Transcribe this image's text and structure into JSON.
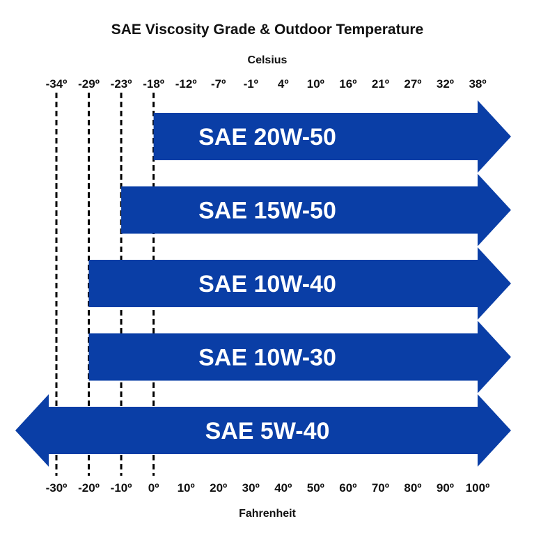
{
  "chart_data": {
    "type": "bar",
    "title": "SAE Viscosity Grade & Outdoor Temperature",
    "top_axis_label": "Celsius",
    "bottom_axis_label": "Fahrenheit",
    "celsius_ticks": [
      "-34º",
      "-29º",
      "-23º",
      "-18º",
      "-12º",
      "-7º",
      "-1º",
      "4º",
      "10º",
      "16º",
      "21º",
      "27º",
      "32º",
      "38º"
    ],
    "fahrenheit_ticks": [
      "-30º",
      "-20º",
      "-10º",
      "0º",
      "10º",
      "20º",
      "30º",
      "40º",
      "50º",
      "60º",
      "70º",
      "80º",
      "90º",
      "100º"
    ],
    "fahrenheit_values": [
      -30,
      -20,
      -10,
      0,
      10,
      20,
      30,
      40,
      50,
      60,
      70,
      80,
      90,
      100
    ],
    "xlim_fahrenheit": [
      -30,
      100
    ],
    "dashed_lines_fahrenheit": [
      -30,
      -20,
      -10,
      0
    ],
    "bar_color": "#0a3ea6",
    "series": [
      {
        "name": "SAE 20W-50",
        "min_f": 0,
        "max_f": 100,
        "open_low": false,
        "open_high": true
      },
      {
        "name": "SAE 15W-50",
        "min_f": -10,
        "max_f": 100,
        "open_low": false,
        "open_high": true
      },
      {
        "name": "SAE 10W-40",
        "min_f": -20,
        "max_f": 100,
        "open_low": false,
        "open_high": true
      },
      {
        "name": "SAE 10W-30",
        "min_f": -20,
        "max_f": 100,
        "open_low": false,
        "open_high": true
      },
      {
        "name": "SAE 5W-40",
        "min_f": -30,
        "max_f": 100,
        "open_low": true,
        "open_high": true
      }
    ]
  }
}
